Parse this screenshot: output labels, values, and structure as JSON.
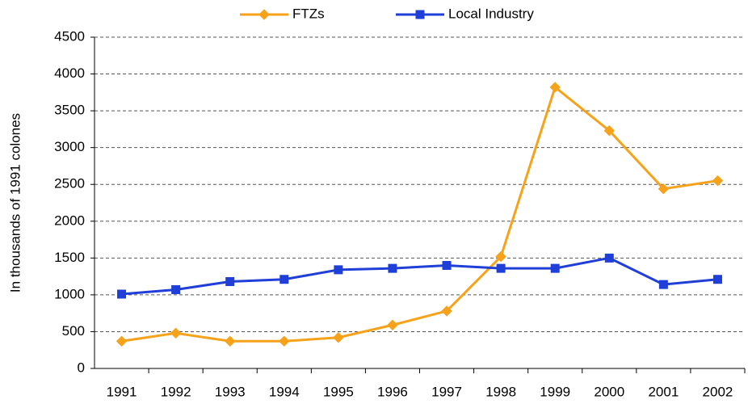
{
  "chart_data": {
    "type": "line",
    "y_label": "In thousands of 1991 colones",
    "categories": [
      "1991",
      "1992",
      "1993",
      "1994",
      "1995",
      "1996",
      "1997",
      "1998",
      "1999",
      "2000",
      "2001",
      "2002"
    ],
    "series": [
      {
        "name": "FTZs",
        "color": "#f7a21b",
        "marker": "diamond",
        "values": [
          370,
          480,
          370,
          370,
          420,
          590,
          780,
          1520,
          3820,
          3230,
          2440,
          2550
        ]
      },
      {
        "name": "Local Industry",
        "color": "#1f3fd8",
        "marker": "square",
        "values": [
          1010,
          1070,
          1180,
          1210,
          1340,
          1360,
          1400,
          1360,
          1360,
          1500,
          1140,
          1210
        ]
      }
    ],
    "ylim": [
      0,
      4500
    ],
    "yticks": [
      0,
      500,
      1000,
      1500,
      2000,
      2500,
      3000,
      3500,
      4000,
      4500
    ],
    "grid": true,
    "legend": "top"
  }
}
